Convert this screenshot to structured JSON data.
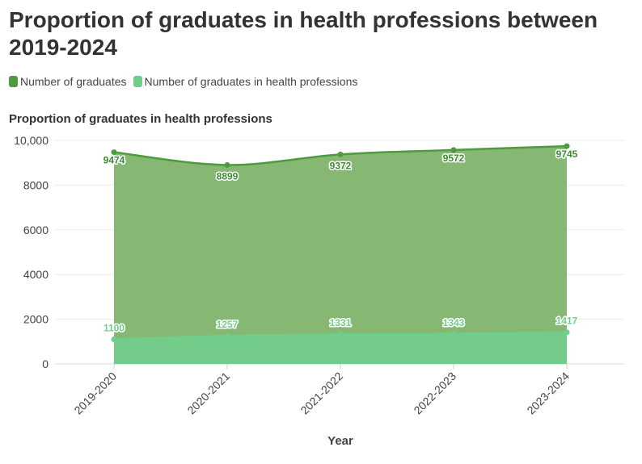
{
  "title": "Proportion of graduates in health professions between 2019-2024",
  "legend": [
    {
      "label": "Number of graduates",
      "color": "#4e9a3e"
    },
    {
      "label": "Number of graduates in health professions",
      "color": "#6fcf8a"
    }
  ],
  "chart_data": {
    "type": "area",
    "title": "Proportion of graduates in health professions",
    "xlabel": "Year",
    "ylabel": "",
    "categories": [
      "2019-2020",
      "2020-2021",
      "2021-2022",
      "2022-2023",
      "2023-2024"
    ],
    "yticks": [
      "0",
      "2000",
      "4000",
      "6000",
      "8000",
      "10,000"
    ],
    "ylim": [
      0,
      10000
    ],
    "grid": true,
    "legend_position": "top-left",
    "series": [
      {
        "name": "Number of graduates",
        "values": [
          9474,
          8899,
          9372,
          9572,
          9745
        ],
        "labels": [
          "9474",
          "8899",
          "9372",
          "9572",
          "9745"
        ],
        "fill": "#86b873",
        "line": "#4e9a3e",
        "label_color": "#3f8a33"
      },
      {
        "name": "Number of graduates in health professions",
        "values": [
          1100,
          1257,
          1331,
          1343,
          1417
        ],
        "labels": [
          "1100",
          "1257",
          "1331",
          "1343",
          "1417"
        ],
        "fill": "#72cc8b",
        "line": "#6fcf8a",
        "label_color": "#6fcf8a"
      }
    ]
  }
}
